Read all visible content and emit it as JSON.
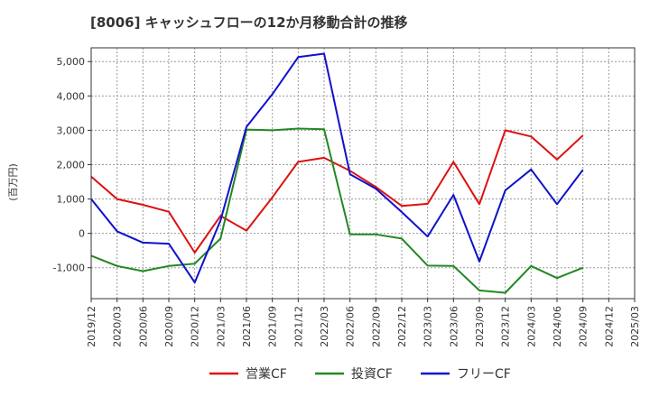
{
  "chart_data": {
    "type": "line",
    "title": "[8006]  キャッシュフローの12か月移動合計の推移",
    "ylabel": "(百万円)",
    "xlabel": "",
    "ylim": [
      -1900,
      5400
    ],
    "yticks": [
      -1000,
      0,
      1000,
      2000,
      3000,
      4000,
      5000
    ],
    "ytick_labels": [
      "-1,000",
      "0",
      "1,000",
      "2,000",
      "3,000",
      "4,000",
      "5,000"
    ],
    "categories": [
      "2019/12",
      "2020/03",
      "2020/06",
      "2020/09",
      "2020/12",
      "2021/03",
      "2021/06",
      "2021/09",
      "2021/12",
      "2022/03",
      "2022/06",
      "2022/09",
      "2022/12",
      "2023/03",
      "2023/06",
      "2023/09",
      "2023/12",
      "2024/03",
      "2024/06",
      "2024/09",
      "2024/12",
      "2025/03"
    ],
    "grid": true,
    "legend_position": "bottom",
    "series": [
      {
        "name": "営業CF",
        "color": "#dd1111",
        "values": [
          1650,
          1000,
          830,
          630,
          -560,
          510,
          80,
          1050,
          2080,
          2200,
          1820,
          1350,
          800,
          860,
          2080,
          850,
          3000,
          2820,
          2150,
          2850,
          null,
          null
        ]
      },
      {
        "name": "投資CF",
        "color": "#228822",
        "values": [
          -650,
          -950,
          -1100,
          -950,
          -880,
          -150,
          3020,
          3000,
          3050,
          3030,
          -30,
          -30,
          -150,
          -940,
          -950,
          -1660,
          -1730,
          -950,
          -1300,
          -1000,
          null,
          null
        ]
      },
      {
        "name": "フリーCF",
        "color": "#1111cc",
        "values": [
          1000,
          60,
          -270,
          -300,
          -1430,
          380,
          3100,
          4050,
          5130,
          5230,
          1720,
          1300,
          620,
          -90,
          1120,
          -820,
          1250,
          1860,
          850,
          1850,
          null,
          null
        ]
      }
    ]
  }
}
